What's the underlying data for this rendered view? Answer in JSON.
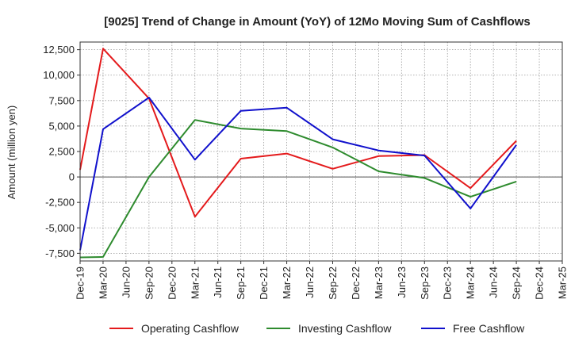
{
  "chart_data": {
    "type": "line",
    "title": "[9025]  Trend of Change in Amount (YoY) of 12Mo Moving Sum of Cashflows",
    "xlabel": "",
    "ylabel": "Amount (million yen)",
    "categories": [
      "Dec-19",
      "Mar-20",
      "Jun-20",
      "Sep-20",
      "Dec-20",
      "Mar-21",
      "Jun-21",
      "Sep-21",
      "Dec-21",
      "Mar-22",
      "Jun-22",
      "Sep-22",
      "Dec-22",
      "Mar-23",
      "Jun-23",
      "Sep-23",
      "Dec-23",
      "Mar-24",
      "Jun-24",
      "Sep-24",
      "Dec-24",
      "Mar-25"
    ],
    "ylim": [
      -8250,
      13250
    ],
    "yticks": [
      12500,
      10000,
      7500,
      5000,
      2500,
      0,
      -2500,
      -5000,
      -7500
    ],
    "ytick_labels": [
      "12,500",
      "10,000",
      "7,500",
      "5,000",
      "2,500",
      "0",
      "-2,500",
      "-5,000",
      "-7,500"
    ],
    "grid": true,
    "legend_position": "bottom",
    "series": [
      {
        "name": "Operating Cashflow",
        "color": "#e41a1c",
        "points": [
          [
            0,
            700
          ],
          [
            1,
            12600
          ],
          [
            3,
            7700
          ],
          [
            5,
            -3900
          ],
          [
            7,
            1800
          ],
          [
            9,
            2300
          ],
          [
            11,
            800
          ],
          [
            13,
            2050
          ],
          [
            15,
            2150
          ],
          [
            17,
            -1100
          ],
          [
            19,
            3550
          ]
        ]
      },
      {
        "name": "Investing Cashflow",
        "color": "#2e8b2e",
        "points": [
          [
            0,
            -7900
          ],
          [
            1,
            -7850
          ],
          [
            3,
            0
          ],
          [
            5,
            5600
          ],
          [
            7,
            4750
          ],
          [
            9,
            4500
          ],
          [
            11,
            2900
          ],
          [
            13,
            550
          ],
          [
            15,
            -100
          ],
          [
            17,
            -1950
          ],
          [
            19,
            -450
          ]
        ]
      },
      {
        "name": "Free Cashflow",
        "color": "#1010cc",
        "points": [
          [
            0,
            -7200
          ],
          [
            1,
            4700
          ],
          [
            3,
            7800
          ],
          [
            5,
            1700
          ],
          [
            7,
            6500
          ],
          [
            9,
            6800
          ],
          [
            11,
            3700
          ],
          [
            13,
            2600
          ],
          [
            15,
            2100
          ],
          [
            17,
            -3100
          ],
          [
            19,
            3150
          ]
        ]
      }
    ]
  }
}
